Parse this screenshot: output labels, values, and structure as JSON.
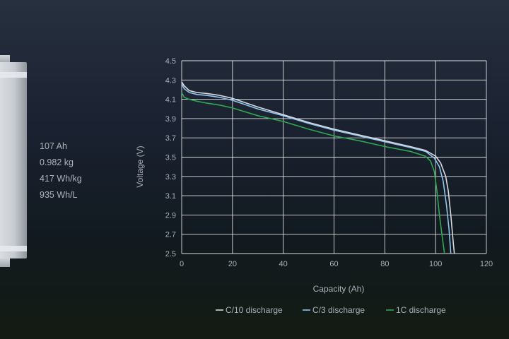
{
  "specs": {
    "capacity": "107 Ah",
    "mass": "0.982 kg",
    "gravimetric_density": "417 Wh/kg",
    "volumetric_density": "935 Wh/L"
  },
  "colors": {
    "grid": "#ffffff",
    "text": "#a9b0b8",
    "c10": "#d6d9dd",
    "c3": "#8fc6ee",
    "c1": "#2fa84f"
  },
  "chart_data": {
    "type": "line",
    "xlabel": "Capacity (Ah)",
    "ylabel": "Voltage (V)",
    "xlim": [
      0,
      120
    ],
    "ylim": [
      2.5,
      4.5
    ],
    "x_ticks": [
      "0",
      "20",
      "40",
      "60",
      "80",
      "100",
      "120"
    ],
    "y_ticks": [
      "2.5",
      "2.7",
      "2.9",
      "3.1",
      "3.3",
      "3.5",
      "3.7",
      "3.9",
      "4.1",
      "4.3",
      "4.5"
    ],
    "grid": true,
    "legend_position": "bottom",
    "series": [
      {
        "name": "C/10 discharge",
        "color": "#d6d9dd",
        "points": [
          [
            0,
            4.28
          ],
          [
            1,
            4.24
          ],
          [
            3,
            4.19
          ],
          [
            6,
            4.17
          ],
          [
            10,
            4.16
          ],
          [
            15,
            4.14
          ],
          [
            20,
            4.11
          ],
          [
            30,
            4.02
          ],
          [
            40,
            3.94
          ],
          [
            50,
            3.86
          ],
          [
            60,
            3.79
          ],
          [
            70,
            3.73
          ],
          [
            80,
            3.67
          ],
          [
            90,
            3.61
          ],
          [
            96,
            3.57
          ],
          [
            100,
            3.51
          ],
          [
            102,
            3.44
          ],
          [
            104,
            3.3
          ],
          [
            105,
            3.15
          ],
          [
            106,
            2.9
          ],
          [
            107,
            2.6
          ],
          [
            107.4,
            2.5
          ]
        ]
      },
      {
        "name": "C/3 discharge",
        "color": "#8fc6ee",
        "points": [
          [
            0,
            4.26
          ],
          [
            1,
            4.21
          ],
          [
            3,
            4.17
          ],
          [
            6,
            4.15
          ],
          [
            10,
            4.14
          ],
          [
            15,
            4.12
          ],
          [
            20,
            4.09
          ],
          [
            30,
            4.0
          ],
          [
            40,
            3.93
          ],
          [
            50,
            3.85
          ],
          [
            60,
            3.78
          ],
          [
            70,
            3.72
          ],
          [
            80,
            3.66
          ],
          [
            90,
            3.6
          ],
          [
            96,
            3.56
          ],
          [
            99.5,
            3.49
          ],
          [
            101.5,
            3.4
          ],
          [
            103,
            3.25
          ],
          [
            104.3,
            3.0
          ],
          [
            105.3,
            2.75
          ],
          [
            106,
            2.5
          ]
        ]
      },
      {
        "name": "1C discharge",
        "color": "#2fa84f",
        "points": [
          [
            0,
            4.17
          ],
          [
            1,
            4.12
          ],
          [
            3,
            4.1
          ],
          [
            6,
            4.08
          ],
          [
            10,
            4.06
          ],
          [
            15,
            4.04
          ],
          [
            20,
            4.01
          ],
          [
            30,
            3.93
          ],
          [
            40,
            3.87
          ],
          [
            50,
            3.79
          ],
          [
            60,
            3.72
          ],
          [
            70,
            3.67
          ],
          [
            80,
            3.61
          ],
          [
            90,
            3.56
          ],
          [
            96,
            3.51
          ],
          [
            98,
            3.46
          ],
          [
            99.5,
            3.35
          ],
          [
            100.5,
            3.15
          ],
          [
            101.5,
            2.9
          ],
          [
            102.5,
            2.7
          ],
          [
            103.5,
            2.5
          ]
        ]
      }
    ]
  }
}
